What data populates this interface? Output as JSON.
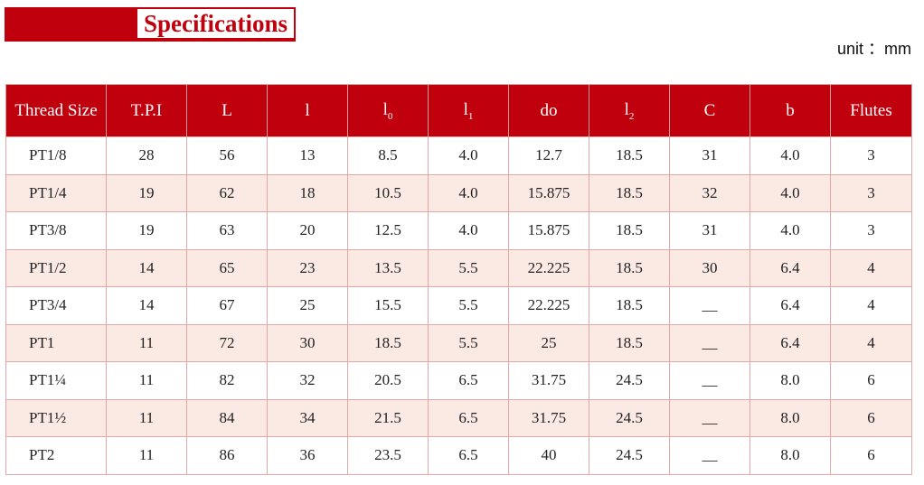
{
  "header": {
    "title": "Specifications",
    "unit": "unit ：mm"
  },
  "table": {
    "columns": [
      {
        "text": "Thread Size"
      },
      {
        "text": "T.P.I"
      },
      {
        "text": "L"
      },
      {
        "text": "l"
      },
      {
        "text": "l",
        "sub": "0"
      },
      {
        "text": "l",
        "sub": "1"
      },
      {
        "text": "do"
      },
      {
        "text": "l",
        "sub": "2"
      },
      {
        "text": "C"
      },
      {
        "text": "b"
      },
      {
        "text": "Flutes"
      }
    ],
    "rows": [
      [
        "PT1/8",
        "28",
        "56",
        "13",
        "8.5",
        "4.0",
        "12.7",
        "18.5",
        "31",
        "4.0",
        "3"
      ],
      [
        "PT1/4",
        "19",
        "62",
        "18",
        "10.5",
        "4.0",
        "15.875",
        "18.5",
        "32",
        "4.0",
        "3"
      ],
      [
        "PT3/8",
        "19",
        "63",
        "20",
        "12.5",
        "4.0",
        "15.875",
        "18.5",
        "31",
        "4.0",
        "3"
      ],
      [
        "PT1/2",
        "14",
        "65",
        "23",
        "13.5",
        "5.5",
        "22.225",
        "18.5",
        "30",
        "6.4",
        "4"
      ],
      [
        "PT3/4",
        "14",
        "67",
        "25",
        "15.5",
        "5.5",
        "22.225",
        "18.5",
        "__",
        "6.4",
        "4"
      ],
      [
        "PT1",
        "11",
        "72",
        "30",
        "18.5",
        "5.5",
        "25",
        "18.5",
        "__",
        "6.4",
        "4"
      ],
      [
        "PT1¼",
        "11",
        "82",
        "32",
        "20.5",
        "6.5",
        "31.75",
        "24.5",
        "__",
        "8.0",
        "6"
      ],
      [
        "PT1½",
        "11",
        "84",
        "34",
        "21.5",
        "6.5",
        "31.75",
        "24.5",
        "__",
        "8.0",
        "6"
      ],
      [
        "PT2",
        "11",
        "86",
        "36",
        "23.5",
        "6.5",
        "40",
        "24.5",
        "__",
        "8.0",
        "6"
      ]
    ]
  }
}
